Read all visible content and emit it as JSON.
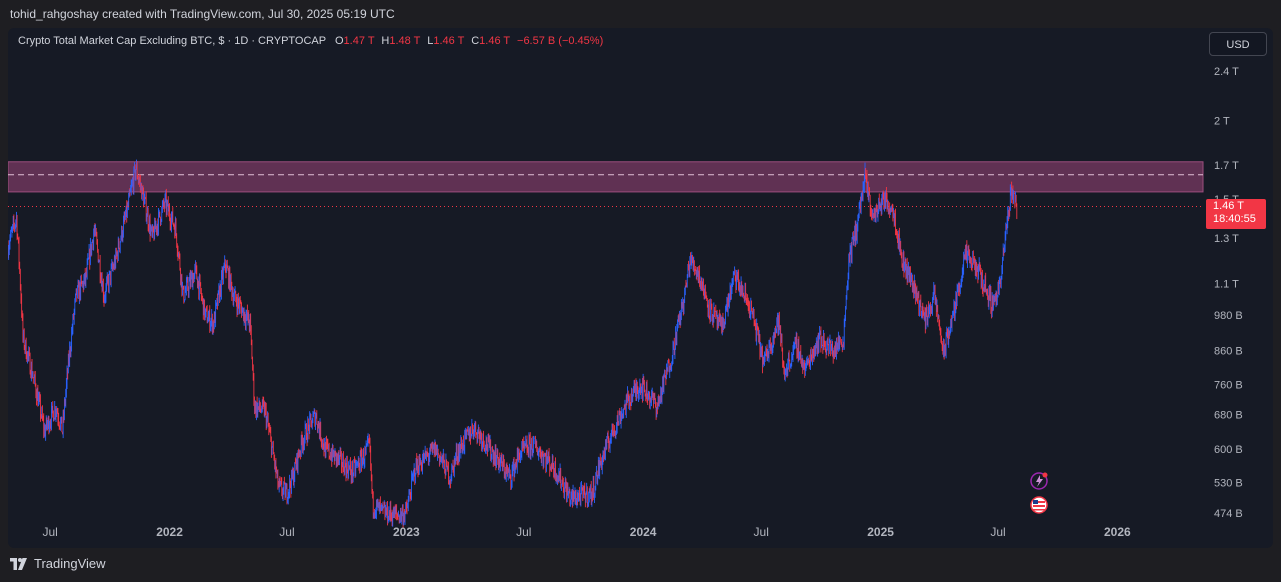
{
  "header": {
    "attribution": "tohid_rahgoshay created with TradingView.com, Jul 30, 2025 05:19 UTC"
  },
  "legend": {
    "symbol": "Crypto Total Market Cap Excluding BTC, $ · 1D · CRYPTOCAP",
    "o_label": "O",
    "o_value": "1.47 T",
    "h_label": "H",
    "h_value": "1.48 T",
    "l_label": "L",
    "l_value": "1.46 T",
    "c_label": "C",
    "c_value": "1.46 T",
    "change": "−6.57 B (−0.45%)"
  },
  "currency_button": "USD",
  "price_tag": {
    "price": "1.46 T",
    "countdown": "18:40:55"
  },
  "footer": {
    "brand": "TradingView"
  },
  "colors": {
    "up": "#2962ff",
    "down": "#f23645",
    "zone_fill": "#7a3a63",
    "background": "#161a25",
    "price_line": "#f23645"
  },
  "icons": [
    "lightning-event-icon",
    "us-flag-icon"
  ],
  "chart_data": {
    "type": "candlestick",
    "title": "Crypto Total Market Cap Excluding BTC, $ · 1D · CRYPTOCAP",
    "y_scale": "log",
    "y_ticks": [
      "2.4 T",
      "2 T",
      "1.7 T",
      "1.5 T",
      "1.3 T",
      "1.1 T",
      "980 B",
      "860 B",
      "760 B",
      "680 B",
      "600 B",
      "530 B",
      "474 B"
    ],
    "y_tick_values": [
      2400,
      2000,
      1700,
      1500,
      1300,
      1100,
      980,
      860,
      760,
      680,
      600,
      530,
      474
    ],
    "y_unit": "B",
    "x_ticks": [
      "Jul",
      "2022",
      "Jul",
      "2023",
      "Jul",
      "2024",
      "Jul",
      "2025",
      "Jul",
      "2026"
    ],
    "x_tick_dates": [
      "2021-07-01",
      "2022-01-01",
      "2022-07-01",
      "2023-01-01",
      "2023-07-01",
      "2024-01-01",
      "2024-07-01",
      "2025-01-01",
      "2025-07-01",
      "2026-01-01"
    ],
    "x_range": [
      "2021-04-27",
      "2026-05-13"
    ],
    "resistance_zone": [
      1540,
      1720
    ],
    "resistance_mid": 1640,
    "last_price": 1460,
    "path": [
      [
        "2021-04-27",
        1260
      ],
      [
        "2021-05-10",
        1400
      ],
      [
        "2021-05-20",
        900
      ],
      [
        "2021-06-05",
        780
      ],
      [
        "2021-06-22",
        640
      ],
      [
        "2021-07-10",
        700
      ],
      [
        "2021-07-20",
        640
      ],
      [
        "2021-08-10",
        1050
      ],
      [
        "2021-08-25",
        1120
      ],
      [
        "2021-09-07",
        1340
      ],
      [
        "2021-09-22",
        1050
      ],
      [
        "2021-10-10",
        1200
      ],
      [
        "2021-10-28",
        1440
      ],
      [
        "2021-11-10",
        1680
      ],
      [
        "2021-11-25",
        1460
      ],
      [
        "2021-12-05",
        1300
      ],
      [
        "2021-12-25",
        1480
      ],
      [
        "2022-01-10",
        1350
      ],
      [
        "2022-01-22",
        1050
      ],
      [
        "2022-02-10",
        1150
      ],
      [
        "2022-02-25",
        980
      ],
      [
        "2022-03-10",
        950
      ],
      [
        "2022-03-28",
        1180
      ],
      [
        "2022-04-10",
        1050
      ],
      [
        "2022-05-05",
        950
      ],
      [
        "2022-05-12",
        700
      ],
      [
        "2022-05-28",
        690
      ],
      [
        "2022-06-18",
        520
      ],
      [
        "2022-06-30",
        510
      ],
      [
        "2022-07-10",
        540
      ],
      [
        "2022-07-25",
        620
      ],
      [
        "2022-08-14",
        680
      ],
      [
        "2022-08-28",
        600
      ],
      [
        "2022-09-15",
        580
      ],
      [
        "2022-10-10",
        550
      ],
      [
        "2022-10-31",
        590
      ],
      [
        "2022-11-05",
        610
      ],
      [
        "2022-11-10",
        490
      ],
      [
        "2022-11-25",
        475
      ],
      [
        "2022-12-20",
        470
      ],
      [
        "2023-01-01",
        475
      ],
      [
        "2023-01-15",
        560
      ],
      [
        "2023-02-15",
        600
      ],
      [
        "2023-03-10",
        540
      ],
      [
        "2023-03-20",
        590
      ],
      [
        "2023-04-15",
        650
      ],
      [
        "2023-05-10",
        600
      ],
      [
        "2023-06-10",
        540
      ],
      [
        "2023-06-25",
        590
      ],
      [
        "2023-07-15",
        610
      ],
      [
        "2023-08-17",
        560
      ],
      [
        "2023-09-11",
        500
      ],
      [
        "2023-10-15",
        510
      ],
      [
        "2023-10-25",
        560
      ],
      [
        "2023-11-15",
        640
      ],
      [
        "2023-12-10",
        720
      ],
      [
        "2023-12-28",
        760
      ],
      [
        "2024-01-23",
        700
      ],
      [
        "2024-02-15",
        850
      ],
      [
        "2024-03-05",
        1050
      ],
      [
        "2024-03-13",
        1200
      ],
      [
        "2024-03-25",
        1150
      ],
      [
        "2024-04-13",
        1000
      ],
      [
        "2024-05-01",
        930
      ],
      [
        "2024-05-21",
        1130
      ],
      [
        "2024-06-15",
        1000
      ],
      [
        "2024-07-05",
        820
      ],
      [
        "2024-07-28",
        960
      ],
      [
        "2024-08-05",
        790
      ],
      [
        "2024-08-25",
        880
      ],
      [
        "2024-09-06",
        800
      ],
      [
        "2024-09-28",
        900
      ],
      [
        "2024-10-20",
        860
      ],
      [
        "2024-11-05",
        900
      ],
      [
        "2024-11-13",
        1200
      ],
      [
        "2024-11-25",
        1350
      ],
      [
        "2024-12-08",
        1620
      ],
      [
        "2024-12-20",
        1400
      ],
      [
        "2025-01-05",
        1500
      ],
      [
        "2025-01-20",
        1450
      ],
      [
        "2025-02-03",
        1200
      ],
      [
        "2025-02-20",
        1100
      ],
      [
        "2025-03-10",
        960
      ],
      [
        "2025-03-25",
        1050
      ],
      [
        "2025-04-08",
        850
      ],
      [
        "2025-04-25",
        1000
      ],
      [
        "2025-05-12",
        1220
      ],
      [
        "2025-06-01",
        1150
      ],
      [
        "2025-06-22",
        1020
      ],
      [
        "2025-07-05",
        1100
      ],
      [
        "2025-07-14",
        1350
      ],
      [
        "2025-07-22",
        1560
      ],
      [
        "2025-07-30",
        1460
      ]
    ]
  }
}
